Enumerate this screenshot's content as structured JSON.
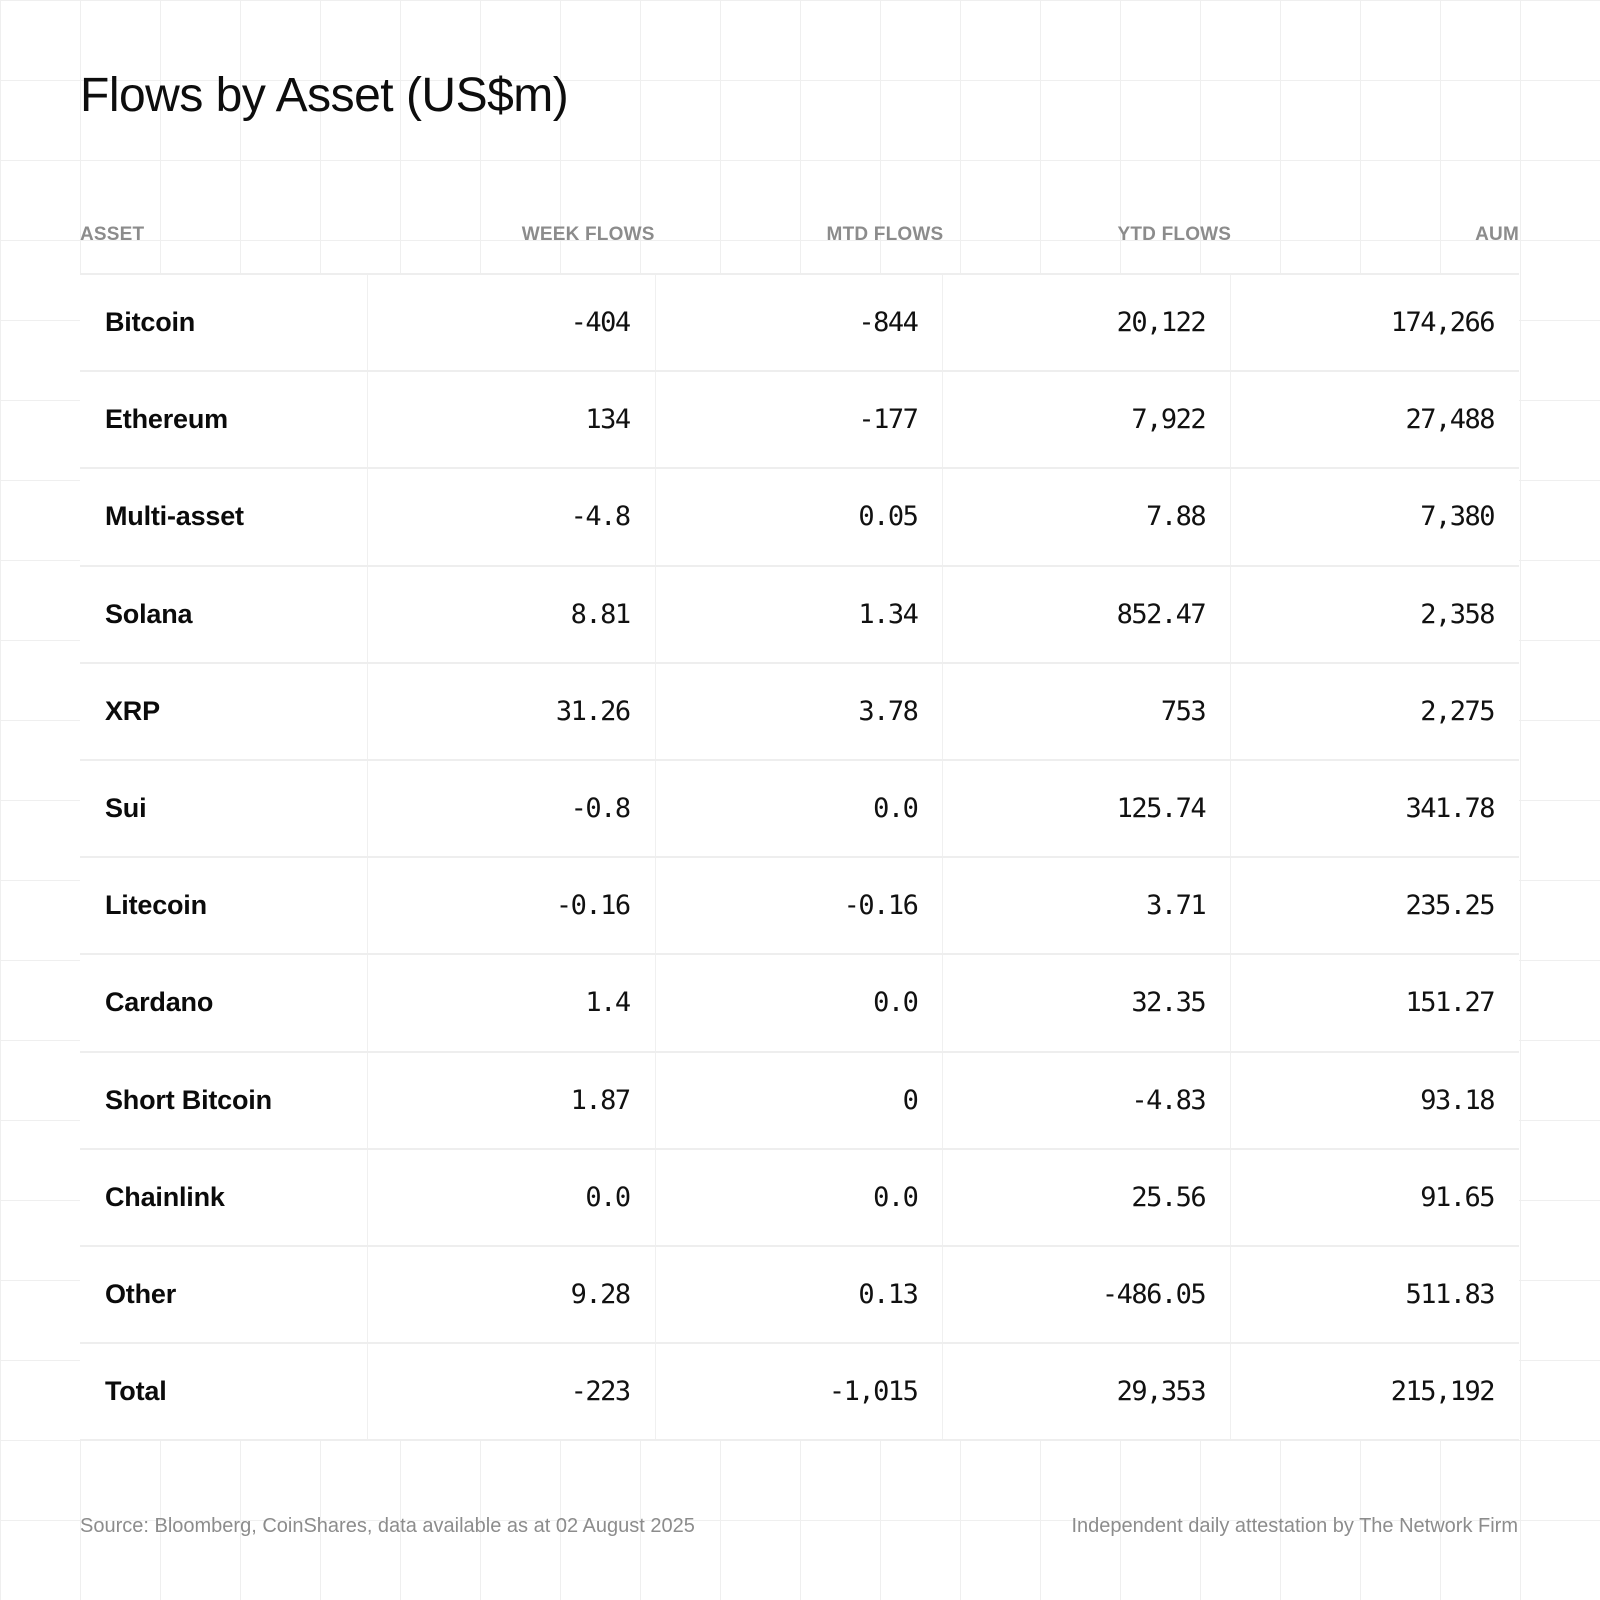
{
  "title": "Flows by Asset (US$m)",
  "columns": [
    "ASSET",
    "WEEK FLOWS",
    "MTD FLOWS",
    "YTD FLOWS",
    "AUM"
  ],
  "rows": [
    {
      "asset": "Bitcoin",
      "week": "-404",
      "mtd": "-844",
      "ytd": "20,122",
      "aum": "174,266"
    },
    {
      "asset": "Ethereum",
      "week": "134",
      "mtd": "-177",
      "ytd": "7,922",
      "aum": "27,488"
    },
    {
      "asset": "Multi-asset",
      "week": "-4.8",
      "mtd": "0.05",
      "ytd": "7.88",
      "aum": "7,380"
    },
    {
      "asset": "Solana",
      "week": "8.81",
      "mtd": "1.34",
      "ytd": "852.47",
      "aum": "2,358"
    },
    {
      "asset": "XRP",
      "week": "31.26",
      "mtd": "3.78",
      "ytd": "753",
      "aum": "2,275"
    },
    {
      "asset": "Sui",
      "week": "-0.8",
      "mtd": "0.0",
      "ytd": "125.74",
      "aum": "341.78"
    },
    {
      "asset": "Litecoin",
      "week": "-0.16",
      "mtd": "-0.16",
      "ytd": "3.71",
      "aum": "235.25"
    },
    {
      "asset": "Cardano",
      "week": "1.4",
      "mtd": "0.0",
      "ytd": "32.35",
      "aum": "151.27"
    },
    {
      "asset": "Short Bitcoin",
      "week": "1.87",
      "mtd": "0",
      "ytd": "-4.83",
      "aum": "93.18"
    },
    {
      "asset": "Chainlink",
      "week": "0.0",
      "mtd": "0.0",
      "ytd": "25.56",
      "aum": "91.65"
    },
    {
      "asset": "Other",
      "week": "9.28",
      "mtd": "0.13",
      "ytd": "-486.05",
      "aum": "511.83"
    },
    {
      "asset": "Total",
      "week": "-223",
      "mtd": "-1,015",
      "ytd": "29,353",
      "aum": "215,192"
    }
  ],
  "footer": {
    "source": "Source: Bloomberg, CoinShares, data available as at 02 August 2025",
    "attestation": "Independent daily attestation by The Network Firm"
  },
  "colors": {
    "background": "#ffffff",
    "grid": "#efefef",
    "header_text": "#8c8c8c",
    "body_text": "#111111",
    "footer_text": "#8c8c8c"
  }
}
